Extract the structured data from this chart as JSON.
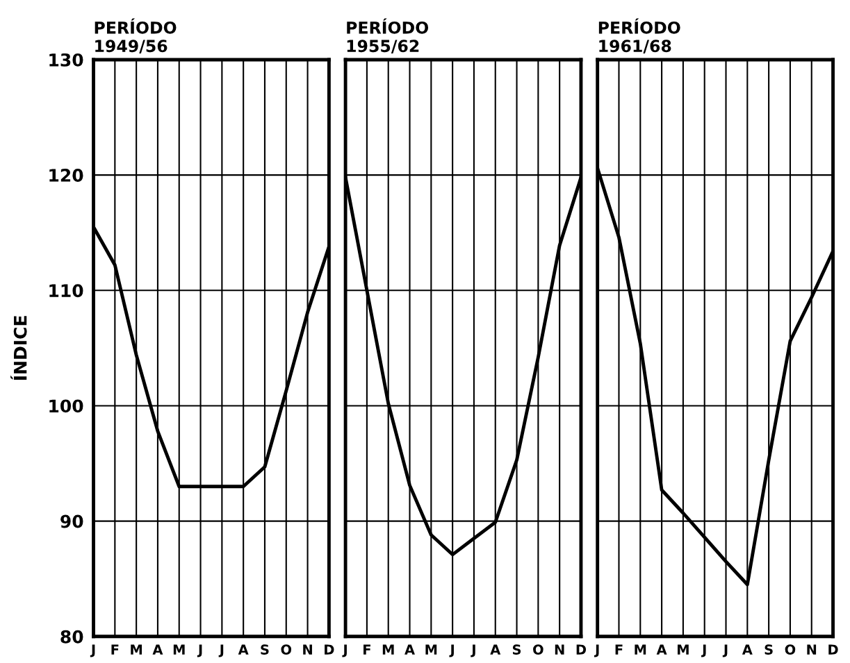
{
  "chart_data": [
    {
      "type": "line",
      "title": "PERÍODO\n1949/56",
      "ylabel": "ÍNDICE",
      "categories": [
        "J",
        "F",
        "M",
        "A",
        "M",
        "J",
        "J",
        "A",
        "S",
        "O",
        "N",
        "D"
      ],
      "series": [
        {
          "color": "#000000",
          "values": [
            115.5,
            112.2,
            104.4,
            97.8,
            93.0,
            93.0,
            93.0,
            93.0,
            94.7,
            101.3,
            108.1,
            113.8
          ]
        }
      ],
      "ylim": [
        80,
        130
      ],
      "yticks": [
        80,
        90,
        100,
        110,
        120,
        130
      ],
      "grid": true,
      "marker": "none",
      "line_style": "solid"
    },
    {
      "type": "line",
      "title": "PERÍODO\n1955/62",
      "categories": [
        "J",
        "F",
        "M",
        "A",
        "M",
        "J",
        "J",
        "A",
        "S",
        "O",
        "N",
        "D"
      ],
      "series": [
        {
          "color": "#000000",
          "values": [
            119.8,
            110.0,
            100.2,
            93.1,
            88.8,
            87.1,
            88.5,
            89.9,
            95.3,
            104.2,
            113.9,
            119.8
          ]
        }
      ],
      "ylim": [
        80,
        130
      ],
      "yticks": [
        80,
        90,
        100,
        110,
        120,
        130
      ],
      "grid": true,
      "marker": "none",
      "line_style": "solid",
      "tick_labels": "x"
    },
    {
      "type": "line",
      "title": "PERÍODO\n1961/68",
      "categories": [
        "J",
        "F",
        "M",
        "A",
        "M",
        "J",
        "J",
        "A",
        "S",
        "O",
        "N",
        "D"
      ],
      "series": [
        {
          "color": "#000000",
          "values": [
            120.6,
            114.6,
            105.4,
            92.7,
            90.7,
            88.6,
            86.5,
            84.5,
            95.3,
            105.6,
            109.4,
            113.4
          ]
        }
      ],
      "ylim": [
        80,
        130
      ],
      "yticks": [
        80,
        90,
        100,
        110,
        120,
        130
      ],
      "grid": true,
      "marker": "none",
      "line_style": "solid",
      "tick_labels": "x"
    }
  ]
}
